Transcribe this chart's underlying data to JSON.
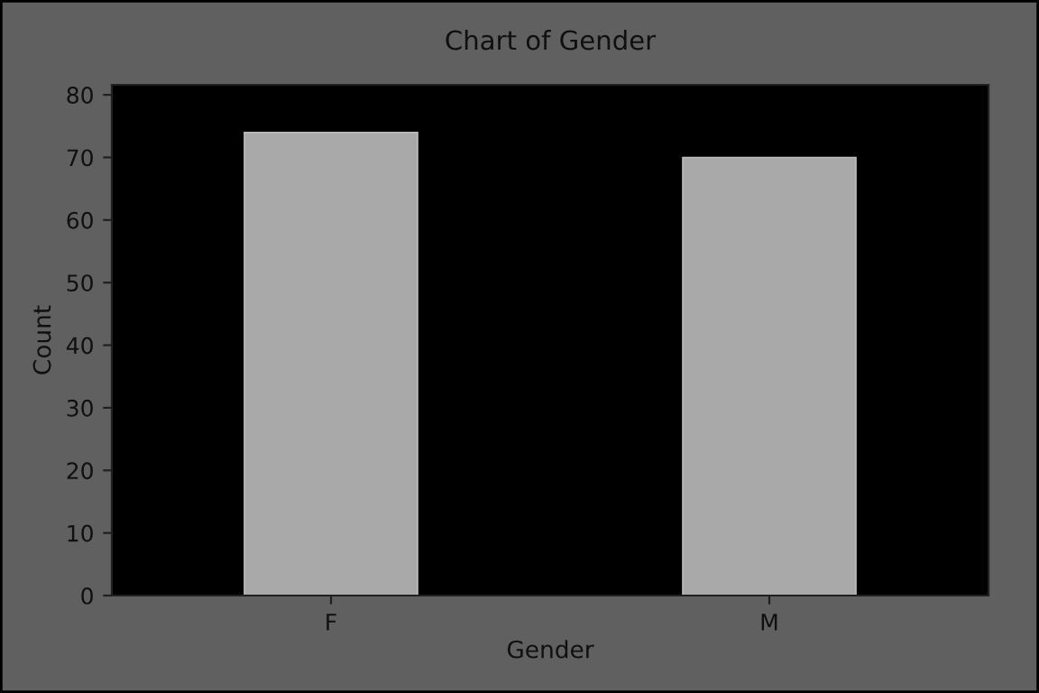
{
  "chart_data": {
    "type": "bar",
    "title": "Chart of Gender",
    "xlabel": "Gender",
    "ylabel": "Count",
    "categories": [
      "F",
      "M"
    ],
    "values": [
      74,
      70
    ],
    "color": "#a9a9a9",
    "ylim": [
      0,
      81.6
    ],
    "yticks": [
      0,
      10,
      20,
      30,
      40,
      50,
      60,
      70,
      80
    ],
    "grid": false,
    "legend": false
  }
}
